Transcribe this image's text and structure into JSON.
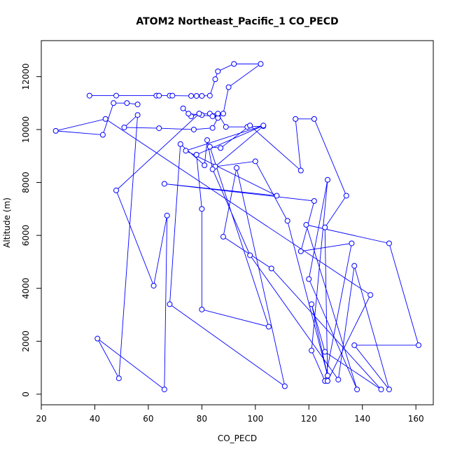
{
  "chart_data": {
    "type": "line",
    "title": "ATOM2 Northeast_Pacific_1 CO_PECD",
    "x_label": "CO_PECD",
    "y_label": "Altitude (m)",
    "x": [
      38,
      48,
      63,
      64,
      68,
      69,
      76,
      78,
      80,
      83,
      85,
      86,
      92,
      102,
      90,
      88,
      86,
      83,
      79,
      76,
      73,
      75,
      80,
      84,
      86,
      84,
      77,
      64,
      51,
      56,
      49,
      41,
      66,
      67,
      62,
      48,
      79,
      86,
      89,
      97,
      103,
      85,
      100,
      112,
      127,
      121,
      126,
      147,
      106,
      88,
      93,
      111,
      68,
      72,
      81,
      82,
      84,
      98,
      131,
      137,
      150,
      137,
      161,
      150,
      119,
      138,
      120,
      127,
      121,
      126,
      136,
      117,
      122,
      66,
      108,
      74,
      103,
      78,
      80,
      80,
      105,
      83,
      87,
      98,
      117,
      115,
      122,
      134,
      126,
      127,
      143,
      44,
      25.4,
      43,
      47,
      52,
      56
    ],
    "series": [
      {
        "name": "CO_PECD",
        "color": "#0000ff",
        "values": [
          11280,
          11280,
          11280,
          11280,
          11280,
          11280,
          11270,
          11270,
          11270,
          11280,
          11900,
          12200,
          12480,
          12480,
          11600,
          10600,
          10500,
          10600,
          10600,
          10500,
          10800,
          10600,
          10550,
          10500,
          10440,
          10060,
          10000,
          10050,
          10080,
          10550,
          600,
          2100,
          180,
          6750,
          4100,
          7700,
          10600,
          10600,
          10100,
          10100,
          10130,
          8600,
          8800,
          6550,
          700,
          3400,
          1600,
          180,
          4750,
          5950,
          8550,
          300,
          3400,
          9450,
          8650,
          9600,
          8500,
          5250,
          550,
          4850,
          180,
          1850,
          1850,
          5700,
          6400,
          180,
          4350,
          8100,
          1650,
          500,
          5700,
          5400,
          7300,
          7950,
          7500,
          9200,
          10150,
          9050,
          7000,
          3200,
          2550,
          9350,
          9300,
          10150,
          8450,
          10400,
          10400,
          7500,
          6300,
          500,
          3750,
          10400,
          9950,
          9800,
          11000,
          11000,
          10950
        ]
      }
    ],
    "xlim": [
      20,
      166.5
    ],
    "ylim": [
      -400,
      13360
    ],
    "xticks": [
      20,
      40,
      60,
      80,
      100,
      120,
      140,
      160
    ],
    "yticks": [
      0,
      2000,
      4000,
      6000,
      8000,
      10000,
      12000
    ]
  }
}
